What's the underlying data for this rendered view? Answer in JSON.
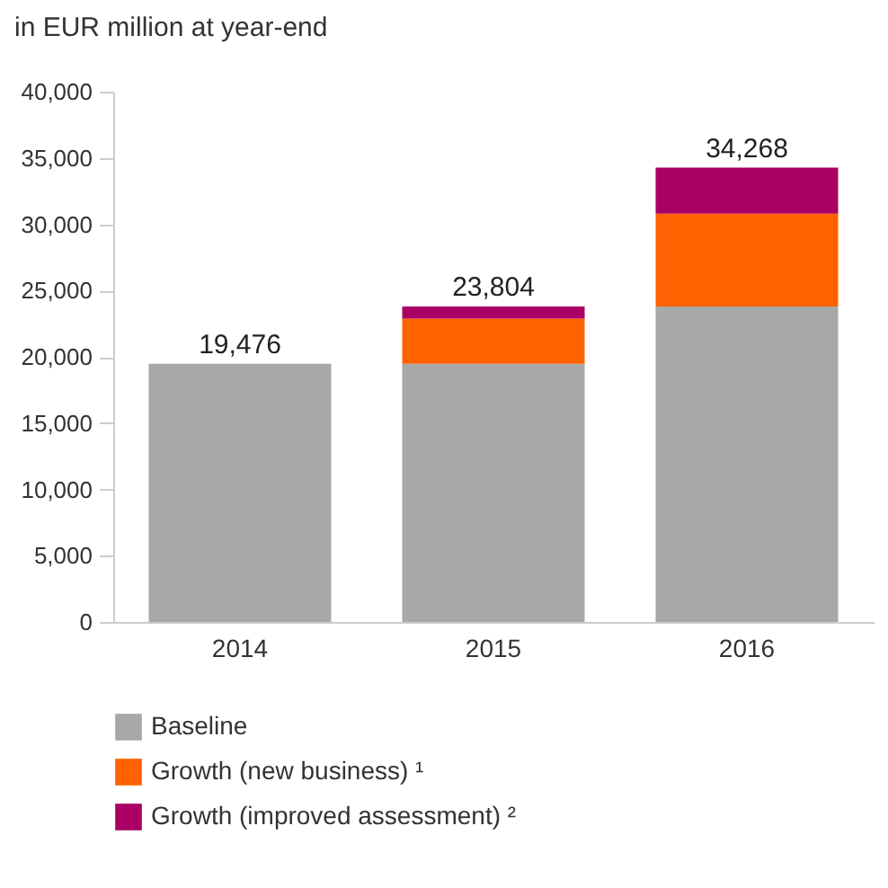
{
  "chart_data": {
    "type": "bar",
    "title": "in EUR million at year-end",
    "categories": [
      "2014",
      "2015",
      "2016"
    ],
    "stacked": true,
    "series": [
      {
        "name": "Baseline",
        "color": "#a8a8a8",
        "values": [
          19476,
          19476,
          23804
        ]
      },
      {
        "name": "Growth (new business) ¹",
        "color": "#ff6200",
        "values": [
          null,
          3400,
          7000
        ]
      },
      {
        "name": "Growth (improved assessment) ²",
        "color": "#aa0066",
        "values": [
          null,
          928,
          3464
        ]
      }
    ],
    "totals": [
      "19,476",
      "23,804",
      "34,268"
    ],
    "ylim": [
      0,
      40000
    ],
    "yticks": [
      0,
      {
        "value": 5000,
        "label": "5,000"
      },
      {
        "value": 10000,
        "label": "10,000"
      },
      {
        "value": 15000,
        "label": "15,000"
      },
      {
        "value": 20000,
        "label": "20,000"
      },
      {
        "value": 25000,
        "label": "25,000"
      },
      {
        "value": 30000,
        "label": "30,000"
      },
      {
        "value": 35000,
        "label": "35,000"
      },
      {
        "value": 40000,
        "label": "40,000"
      }
    ],
    "grid": false,
    "legend": "bottom"
  }
}
